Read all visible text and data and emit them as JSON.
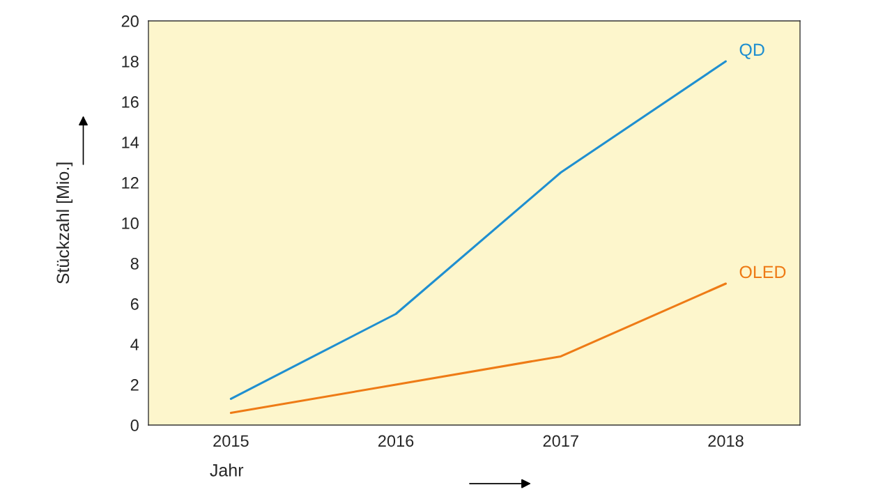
{
  "chart_data": {
    "type": "line",
    "xlabel": "Jahr",
    "ylabel": "Stückzahl [Mio.]",
    "x": [
      2015,
      2016,
      2017,
      2018
    ],
    "series": [
      {
        "name": "QD",
        "color": "#1f8fd0",
        "values": [
          1.3,
          5.5,
          12.5,
          18
        ]
      },
      {
        "name": "OLED",
        "color": "#ee7b16",
        "values": [
          0.6,
          2.0,
          3.4,
          7.0
        ]
      }
    ],
    "xlim": [
      2014.5,
      2018.45
    ],
    "ylim": [
      0,
      20
    ],
    "xticks": [
      2015,
      2016,
      2017,
      2018
    ],
    "yticks": [
      0,
      2,
      4,
      6,
      8,
      10,
      12,
      14,
      16,
      18,
      20
    ],
    "grid": false,
    "legend": false,
    "marker": "none",
    "line_style": "solid"
  }
}
